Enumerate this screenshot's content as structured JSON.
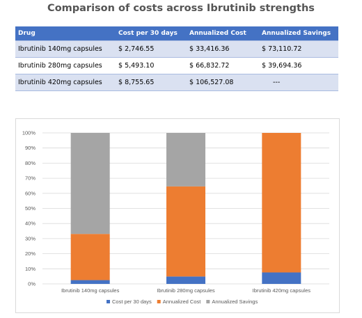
{
  "title": "Comparison of costs across Ibrutinib strengths",
  "table": {
    "headers": [
      "Drug",
      "Cost per 30 days",
      "Annualized Cost",
      "Annualized Savings"
    ],
    "rows": [
      [
        "Ibrutinib 140mg capsules",
        "$ 2,746.55",
        "$ 33,416.36",
        "$ 73,110.72"
      ],
      [
        "Ibrutinib 280mg capsules",
        "$ 5,493.10",
        "$ 66,832.72",
        "$ 39,694.36"
      ],
      [
        "Ibrutinib 420mg capsules",
        "$ 8,755.65",
        "$ 106,527.08",
        "---"
      ]
    ]
  },
  "colors": {
    "header": "#4472c4",
    "series": [
      "#4472c4",
      "#ed7d31",
      "#a5a5a5"
    ]
  },
  "chart_data": {
    "type": "bar",
    "stacked": "percent",
    "categories": [
      "Ibrutinib 140mg capsules",
      "Ibrutinib 280mg capsules",
      "Ibrutinib 420mg capsules"
    ],
    "series": [
      {
        "name": "Cost per 30 days",
        "values": [
          2746.55,
          5493.1,
          8755.65
        ]
      },
      {
        "name": "Annualized Cost",
        "values": [
          33416.36,
          66832.72,
          106527.08
        ]
      },
      {
        "name": "Annualized Savings",
        "values": [
          73110.72,
          39694.36,
          0
        ]
      }
    ],
    "yticks": [
      "0%",
      "10%",
      "20%",
      "30%",
      "40%",
      "50%",
      "60%",
      "70%",
      "80%",
      "90%",
      "100%"
    ],
    "ylim": [
      0,
      100
    ],
    "grid": true,
    "legend": "bottom"
  }
}
